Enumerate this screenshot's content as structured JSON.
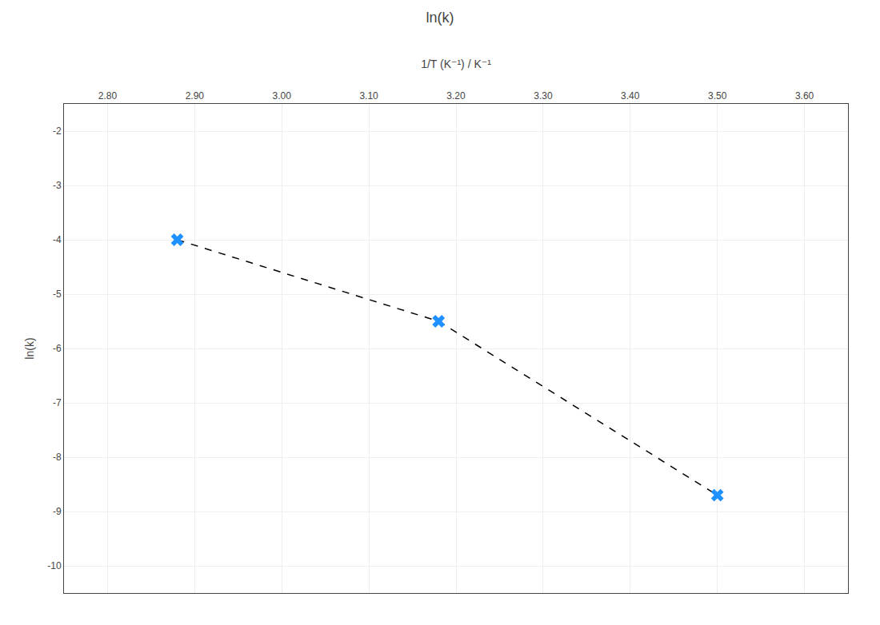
{
  "chart_data": {
    "type": "line",
    "title": "ln(k)",
    "xlabel": "1/T (K⁻¹) / K⁻¹",
    "ylabel": "ln(k)",
    "x": [
      2.88,
      3.18,
      3.5
    ],
    "series": [
      {
        "type": "line",
        "color": "#000000",
        "line_style": "dashed",
        "values": [
          -4.0,
          -5.5,
          -8.7
        ]
      },
      {
        "type": "scatter",
        "color": "#1E90FF",
        "marker": "x",
        "values": [
          -4.0,
          -5.5,
          -8.7
        ]
      }
    ],
    "xlim": [
      2.75,
      3.65
    ],
    "xticks": [
      {
        "value": 2.8,
        "label": "2.80"
      },
      {
        "value": 2.9,
        "label": "2.90"
      },
      {
        "value": 3.0,
        "label": "3.00"
      },
      {
        "value": 3.1,
        "label": "3.10"
      },
      {
        "value": 3.2,
        "label": "3.20"
      },
      {
        "value": 3.3,
        "label": "3.30"
      },
      {
        "value": 3.4,
        "label": "3.40"
      },
      {
        "value": 3.5,
        "label": "3.50"
      },
      {
        "value": 3.6,
        "label": "3.60"
      }
    ],
    "ylim": [
      -10.5,
      -1.5
    ],
    "yticks": [
      -10,
      -9,
      -8,
      -7,
      -6,
      -5,
      -4,
      -3,
      -2
    ],
    "grid": true
  }
}
